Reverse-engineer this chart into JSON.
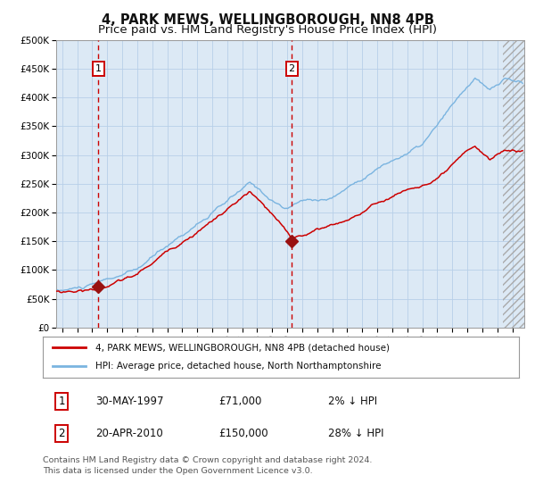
{
  "title1": "4, PARK MEWS, WELLINGBOROUGH, NN8 4PB",
  "title2": "Price paid vs. HM Land Registry's House Price Index (HPI)",
  "bg_color": "#dce9f5",
  "ylim": [
    0,
    500000
  ],
  "yticks": [
    0,
    50000,
    100000,
    150000,
    200000,
    250000,
    300000,
    350000,
    400000,
    450000,
    500000
  ],
  "ytick_labels": [
    "£0",
    "£50K",
    "£100K",
    "£150K",
    "£200K",
    "£250K",
    "£300K",
    "£350K",
    "£400K",
    "£450K",
    "£500K"
  ],
  "xlim_start": 1994.6,
  "xlim_end": 2025.8,
  "hpi_color": "#7ab4e0",
  "price_color": "#cc0000",
  "marker_color": "#991111",
  "vline_color": "#cc0000",
  "grid_color": "#b8cfe8",
  "transaction1_x": 1997.41,
  "transaction1_y": 71000,
  "transaction2_x": 2010.3,
  "transaction2_y": 150000,
  "legend_label1": "4, PARK MEWS, WELLINGBOROUGH, NN8 4PB (detached house)",
  "legend_label2": "HPI: Average price, detached house, North Northamptonshire",
  "table_row1": [
    "1",
    "30-MAY-1997",
    "£71,000",
    "2% ↓ HPI"
  ],
  "table_row2": [
    "2",
    "20-APR-2010",
    "£150,000",
    "28% ↓ HPI"
  ],
  "footnote": "Contains HM Land Registry data © Crown copyright and database right 2024.\nThis data is licensed under the Open Government Licence v3.0.",
  "title_fontsize": 10.5,
  "subtitle_fontsize": 9.5
}
